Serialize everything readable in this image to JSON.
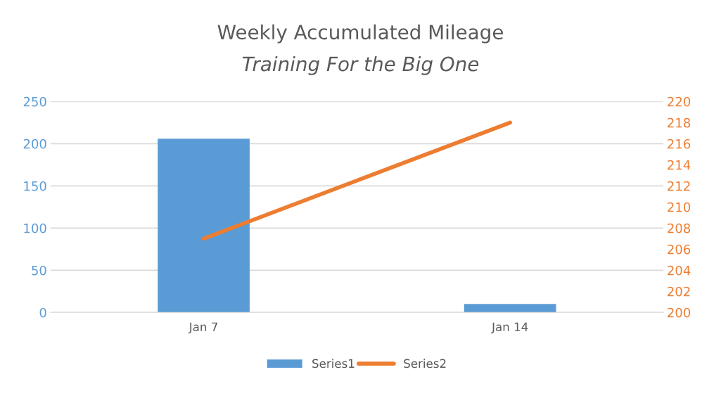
{
  "chart_data": {
    "type": "bar",
    "title": "Weekly Accumulated Mileage",
    "subtitle": "Training For the Big One",
    "categories": [
      "Jan 7",
      "Jan 14"
    ],
    "series": [
      {
        "name": "Series1",
        "color": "#5b9bd5",
        "values": [
          206,
          10
        ]
      },
      {
        "name": "Series2",
        "color": "#ed7d31",
        "values": [
          207,
          218
        ],
        "type": "line",
        "axis": "y2"
      }
    ],
    "ylim": [
      0,
      250
    ],
    "yticks": [
      0,
      50,
      100,
      150,
      200,
      250
    ],
    "y2lim": [
      200,
      220
    ],
    "y2ticks": [
      200,
      202,
      204,
      206,
      208,
      210,
      212,
      214,
      216,
      218,
      220
    ],
    "grid": "y",
    "legend": "bottom"
  }
}
